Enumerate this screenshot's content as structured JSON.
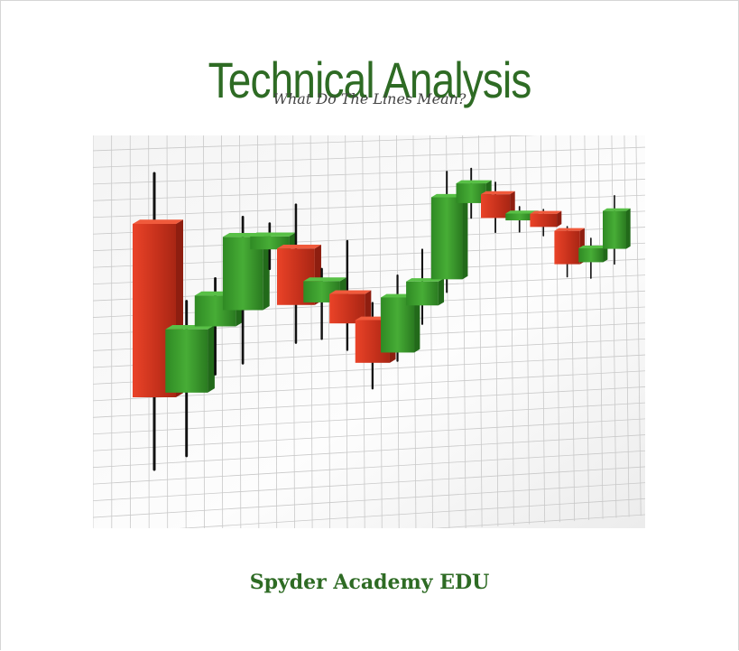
{
  "cover": {
    "title": "Technical Analysis",
    "subtitle": "What Do The Lines Mean?",
    "footer": "Spyder Academy EDU"
  },
  "colors": {
    "title": "#2e6b24",
    "footer": "#2e6b24",
    "candle_up": "#3a9a2c",
    "candle_down": "#d63a22",
    "wick": "#111111",
    "grid": "#c9c9c9"
  },
  "image": {
    "description_icon": "candlestick-chart-illustration",
    "candles": [
      {
        "dir": "down",
        "open": 0.78,
        "close": 0.3,
        "high": 0.92,
        "low": 0.1
      },
      {
        "dir": "up",
        "open": 0.3,
        "close": 0.48,
        "high": 0.56,
        "low": 0.12
      },
      {
        "dir": "up",
        "open": 0.48,
        "close": 0.57,
        "high": 0.62,
        "low": 0.34
      },
      {
        "dir": "up",
        "open": 0.52,
        "close": 0.74,
        "high": 0.8,
        "low": 0.36
      },
      {
        "dir": "up",
        "open": 0.7,
        "close": 0.74,
        "high": 0.78,
        "low": 0.64
      },
      {
        "dir": "down",
        "open": 0.7,
        "close": 0.52,
        "high": 0.84,
        "low": 0.4
      },
      {
        "dir": "up",
        "open": 0.52,
        "close": 0.59,
        "high": 0.63,
        "low": 0.4
      },
      {
        "dir": "down",
        "open": 0.54,
        "close": 0.44,
        "high": 0.72,
        "low": 0.35
      },
      {
        "dir": "down",
        "open": 0.44,
        "close": 0.29,
        "high": 0.5,
        "low": 0.2
      },
      {
        "dir": "up",
        "open": 0.31,
        "close": 0.51,
        "high": 0.59,
        "low": 0.28
      },
      {
        "dir": "up",
        "open": 0.47,
        "close": 0.56,
        "high": 0.68,
        "low": 0.4
      },
      {
        "dir": "up",
        "open": 0.56,
        "close": 0.88,
        "high": 0.98,
        "low": 0.51
      },
      {
        "dir": "up",
        "open": 0.86,
        "close": 0.94,
        "high": 1.0,
        "low": 0.8
      },
      {
        "dir": "down",
        "open": 0.9,
        "close": 0.8,
        "high": 0.95,
        "low": 0.74
      },
      {
        "dir": "up",
        "open": 0.79,
        "close": 0.82,
        "high": 0.85,
        "low": 0.74
      },
      {
        "dir": "down",
        "open": 0.82,
        "close": 0.76,
        "high": 0.84,
        "low": 0.72
      },
      {
        "dir": "down",
        "open": 0.74,
        "close": 0.58,
        "high": 0.76,
        "low": 0.52
      },
      {
        "dir": "up",
        "open": 0.58,
        "close": 0.65,
        "high": 0.7,
        "low": 0.5
      },
      {
        "dir": "up",
        "open": 0.64,
        "close": 0.84,
        "high": 0.92,
        "low": 0.56
      }
    ]
  }
}
